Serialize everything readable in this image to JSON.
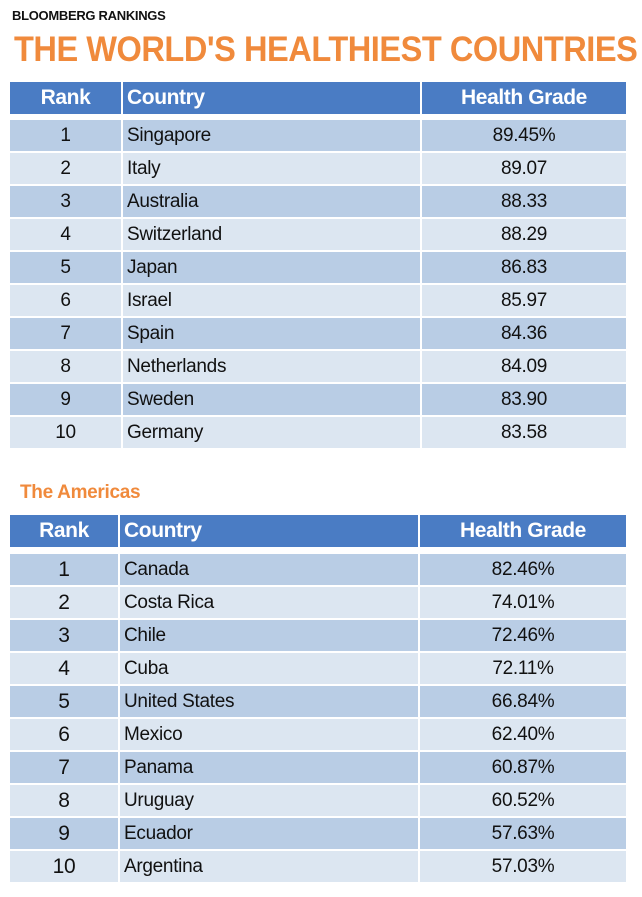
{
  "header": {
    "kicker": "BLOOMBERG RANKINGS",
    "title": "THE WORLD'S HEALTHIEST COUNTRIES"
  },
  "colors": {
    "title": "#f08a3c",
    "header_bg": "#4a7cc4",
    "row_dark": "#b9cde5",
    "row_light": "#dce6f1"
  },
  "chart_data": [
    {
      "type": "table",
      "title": "THE WORLD'S HEALTHIEST COUNTRIES",
      "columns": [
        "Rank",
        "Country",
        "Health Grade"
      ],
      "rows": [
        [
          "1",
          "Singapore",
          "89.45%"
        ],
        [
          "2",
          "Italy",
          "89.07"
        ],
        [
          "3",
          "Australia",
          "88.33"
        ],
        [
          "4",
          "Switzerland",
          "88.29"
        ],
        [
          "5",
          "Japan",
          "86.83"
        ],
        [
          "6",
          "Israel",
          "85.97"
        ],
        [
          "7",
          "Spain",
          "84.36"
        ],
        [
          "8",
          "Netherlands",
          "84.09"
        ],
        [
          "9",
          "Sweden",
          "83.90"
        ],
        [
          "10",
          "Germany",
          "83.58"
        ]
      ]
    },
    {
      "type": "table",
      "title": "The Americas",
      "columns": [
        "Rank",
        "Country",
        "Health Grade"
      ],
      "rows": [
        [
          "1",
          "Canada",
          "82.46%"
        ],
        [
          "2",
          "Costa Rica",
          "74.01%"
        ],
        [
          "3",
          "Chile",
          "72.46%"
        ],
        [
          "4",
          "Cuba",
          "72.11%"
        ],
        [
          "5",
          "United States",
          "66.84%"
        ],
        [
          "6",
          "Mexico",
          "62.40%"
        ],
        [
          "7",
          "Panama",
          "60.87%"
        ],
        [
          "8",
          "Uruguay",
          "60.52%"
        ],
        [
          "9",
          "Ecuador",
          "57.63%"
        ],
        [
          "10",
          "Argentina",
          "57.03%"
        ]
      ]
    }
  ]
}
